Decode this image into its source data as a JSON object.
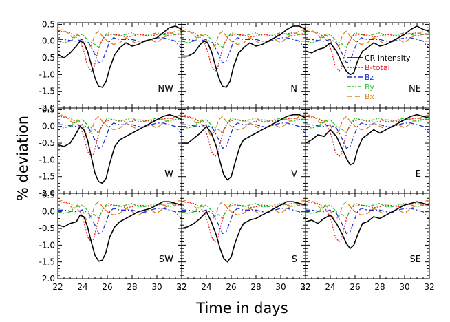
{
  "figure": {
    "xlabel": "Time in days",
    "ylabel": "% deviation"
  },
  "chart_data": {
    "type": "line",
    "layout": "3x3 grid of panels with shared axes",
    "x_ticks": [
      "22",
      "24",
      "26",
      "28",
      "30",
      "32"
    ],
    "y_ticks": [
      "0.5",
      "0.0",
      "-0.5",
      "-1.0",
      "-1.5",
      "-2.0"
    ],
    "xlim": [
      22,
      32
    ],
    "ylim": [
      -2.0,
      0.55
    ],
    "legend": {
      "placement": "right side of NE panel",
      "entries": [
        {
          "key": "cr",
          "label": "CR intensity",
          "color": "#000000",
          "dash": ""
        },
        {
          "key": "bt",
          "label": "B-total",
          "color": "#e8191b",
          "dash": "2,2"
        },
        {
          "key": "bz",
          "label": "Bz",
          "color": "#1a2fd6",
          "dash": "7,3,2,3"
        },
        {
          "key": "by",
          "label": "By",
          "color": "#25c425",
          "dash": "5,2,2,2,2,2"
        },
        {
          "key": "bx",
          "label": "Bx",
          "color": "#e07b15",
          "dash": "7,4"
        }
      ]
    },
    "shared_series": {
      "bt": {
        "x": [
          22,
          22.5,
          23,
          23.4,
          23.8,
          24.1,
          24.4,
          24.7,
          24.9,
          25.1,
          25.4,
          25.8,
          26.3,
          27,
          27.5,
          28,
          28.5,
          29,
          29.5,
          30,
          30.5,
          31,
          31.5,
          32
        ],
        "y": [
          0.3,
          0.28,
          0.25,
          0.15,
          0.0,
          -0.3,
          -0.75,
          -0.9,
          -0.82,
          -0.5,
          -0.1,
          0.15,
          0.2,
          0.18,
          0.12,
          0.15,
          0.2,
          0.18,
          0.15,
          0.2,
          0.22,
          0.25,
          0.2,
          0.2
        ]
      },
      "bz": {
        "x": [
          22,
          22.5,
          23,
          23.5,
          24,
          24.5,
          25,
          25.3,
          25.6,
          25.9,
          26.2,
          26.5,
          27,
          27.5,
          28,
          28.5,
          29,
          29.5,
          30,
          30.5,
          31,
          31.5,
          31.8,
          32
        ],
        "y": [
          0.05,
          0.05,
          0.02,
          0.0,
          0.05,
          -0.05,
          -0.4,
          -0.65,
          -0.6,
          -0.3,
          0.0,
          0.1,
          0.05,
          0.05,
          0.05,
          0.0,
          -0.02,
          0.05,
          0.1,
          0.1,
          0.05,
          0.0,
          -0.15,
          -0.2
        ]
      },
      "by": {
        "x": [
          22,
          22.5,
          23,
          23.5,
          24,
          24.5,
          25,
          25.3,
          25.6,
          26,
          26.5,
          27,
          27.5,
          28,
          28.5,
          29,
          29.5,
          30,
          30.5,
          31,
          31.5,
          32
        ],
        "y": [
          0.0,
          -0.05,
          0.0,
          0.15,
          0.2,
          0.0,
          -0.1,
          -0.2,
          0.05,
          0.25,
          0.2,
          0.15,
          0.2,
          0.25,
          0.15,
          0.15,
          0.2,
          0.25,
          0.2,
          0.15,
          0.2,
          0.25
        ]
      },
      "bx": {
        "x": [
          22,
          22.4,
          22.8,
          23.2,
          23.6,
          24,
          24.3,
          24.7,
          25,
          25.3,
          25.6,
          26,
          26.5,
          27,
          27.5,
          28,
          28.5,
          29,
          29.5,
          30,
          30.5,
          31,
          31.5,
          32
        ],
        "y": [
          0.3,
          0.35,
          0.25,
          0.1,
          0.2,
          0.05,
          -0.25,
          -0.15,
          0.2,
          0.3,
          0.15,
          0.0,
          -0.1,
          -0.05,
          0.1,
          0.0,
          -0.1,
          0.0,
          0.05,
          -0.05,
          0.1,
          0.2,
          0.3,
          0.35
        ]
      }
    },
    "panels": [
      {
        "name": "NW",
        "cr": {
          "x": [
            22,
            22.5,
            23,
            23.5,
            23.8,
            24.1,
            24.4,
            24.7,
            25,
            25.3,
            25.6,
            25.9,
            26.2,
            26.6,
            27,
            27.5,
            28,
            28.5,
            29,
            29.5,
            30,
            30.5,
            31,
            31.5,
            32
          ],
          "y": [
            -0.4,
            -0.5,
            -0.35,
            -0.15,
            0.0,
            -0.05,
            -0.3,
            -0.7,
            -1.1,
            -1.35,
            -1.38,
            -1.2,
            -0.8,
            -0.4,
            -0.2,
            -0.05,
            -0.15,
            -0.1,
            0.0,
            0.05,
            0.1,
            0.25,
            0.4,
            0.45,
            0.35
          ]
        }
      },
      {
        "name": "N",
        "cr": {
          "x": [
            22,
            22.5,
            23,
            23.5,
            23.8,
            24.1,
            24.4,
            24.7,
            25,
            25.3,
            25.6,
            25.9,
            26.2,
            26.6,
            27,
            27.5,
            28,
            28.5,
            29,
            29.5,
            30,
            30.5,
            31,
            31.5,
            32
          ],
          "y": [
            -0.45,
            -0.45,
            -0.35,
            -0.1,
            0.0,
            -0.05,
            -0.3,
            -0.7,
            -1.1,
            -1.35,
            -1.38,
            -1.2,
            -0.75,
            -0.35,
            -0.2,
            -0.05,
            -0.15,
            -0.1,
            0.0,
            0.1,
            0.2,
            0.35,
            0.45,
            0.45,
            0.35
          ]
        }
      },
      {
        "name": "NE",
        "cr": {
          "x": [
            22,
            22.5,
            23,
            23.5,
            24,
            24.5,
            25,
            25.3,
            25.6,
            25.9,
            26.2,
            26.6,
            27,
            27.5,
            28,
            28.5,
            29,
            29.5,
            30,
            30.5,
            31,
            31.5,
            32
          ],
          "y": [
            -0.3,
            -0.35,
            -0.25,
            -0.2,
            -0.05,
            -0.3,
            -0.7,
            -0.9,
            -1.0,
            -0.95,
            -0.6,
            -0.3,
            -0.2,
            -0.05,
            -0.15,
            -0.1,
            0.0,
            0.1,
            0.2,
            0.35,
            0.45,
            0.35,
            0.3
          ]
        }
      },
      {
        "name": "W",
        "cr": {
          "x": [
            22,
            22.5,
            23,
            23.5,
            23.8,
            24.1,
            24.4,
            24.7,
            25,
            25.3,
            25.6,
            25.9,
            26.2,
            26.6,
            27,
            27.5,
            28,
            28.5,
            29,
            29.5,
            30,
            30.5,
            31,
            31.5,
            32
          ],
          "y": [
            -0.55,
            -0.6,
            -0.5,
            -0.2,
            0.0,
            -0.1,
            -0.4,
            -0.9,
            -1.4,
            -1.65,
            -1.7,
            -1.55,
            -1.1,
            -0.6,
            -0.4,
            -0.3,
            -0.2,
            -0.1,
            0.0,
            0.1,
            0.2,
            0.3,
            0.35,
            0.3,
            0.2
          ]
        }
      },
      {
        "name": "V",
        "cr": {
          "x": [
            22,
            22.5,
            23,
            23.5,
            24,
            24.4,
            24.8,
            25.1,
            25.4,
            25.7,
            26,
            26.3,
            26.7,
            27,
            27.5,
            28,
            28.5,
            29,
            29.5,
            30,
            30.5,
            31,
            31.5,
            32
          ],
          "y": [
            -0.5,
            -0.5,
            -0.35,
            -0.2,
            0.0,
            -0.2,
            -0.6,
            -1.05,
            -1.45,
            -1.6,
            -1.5,
            -1.1,
            -0.6,
            -0.4,
            -0.3,
            -0.2,
            -0.1,
            0.0,
            0.1,
            0.2,
            0.3,
            0.35,
            0.35,
            0.25
          ]
        }
      },
      {
        "name": "E",
        "cr": {
          "x": [
            22,
            22.5,
            23,
            23.5,
            24,
            24.5,
            25,
            25.3,
            25.6,
            25.9,
            26.2,
            26.6,
            27,
            27.5,
            28,
            28.5,
            29,
            29.5,
            30,
            30.5,
            31,
            31.5,
            32
          ],
          "y": [
            -0.5,
            -0.4,
            -0.25,
            -0.3,
            -0.1,
            -0.3,
            -0.7,
            -0.95,
            -1.15,
            -1.1,
            -0.7,
            -0.35,
            -0.25,
            -0.1,
            -0.2,
            -0.1,
            0.0,
            0.1,
            0.2,
            0.3,
            0.35,
            0.3,
            0.25
          ]
        }
      },
      {
        "name": "SW",
        "cr": {
          "x": [
            22,
            22.5,
            23,
            23.5,
            23.8,
            24.1,
            24.4,
            24.7,
            25,
            25.3,
            25.6,
            25.9,
            26.2,
            26.6,
            27,
            27.5,
            28,
            28.5,
            29,
            29.5,
            30,
            30.5,
            31,
            31.5,
            32
          ],
          "y": [
            -0.4,
            -0.45,
            -0.35,
            -0.3,
            -0.1,
            -0.15,
            -0.45,
            -0.9,
            -1.3,
            -1.48,
            -1.45,
            -1.2,
            -0.75,
            -0.45,
            -0.3,
            -0.2,
            -0.1,
            0.0,
            0.05,
            0.1,
            0.2,
            0.3,
            0.3,
            0.25,
            0.2
          ]
        }
      },
      {
        "name": "S",
        "cr": {
          "x": [
            22,
            22.5,
            23,
            23.5,
            24,
            24.4,
            24.8,
            25.1,
            25.4,
            25.7,
            26,
            26.3,
            26.7,
            27,
            27.5,
            28,
            28.5,
            29,
            29.5,
            30,
            30.5,
            31,
            31.5,
            32
          ],
          "y": [
            -0.5,
            -0.45,
            -0.35,
            -0.2,
            0.0,
            -0.3,
            -0.7,
            -1.1,
            -1.4,
            -1.5,
            -1.35,
            -0.95,
            -0.55,
            -0.35,
            -0.25,
            -0.2,
            -0.1,
            0.0,
            0.1,
            0.2,
            0.3,
            0.3,
            0.25,
            0.2
          ]
        }
      },
      {
        "name": "SE",
        "cr": {
          "x": [
            22,
            22.5,
            23,
            23.5,
            24,
            24.5,
            25,
            25.3,
            25.6,
            25.9,
            26.2,
            26.6,
            27,
            27.5,
            28,
            28.5,
            29,
            29.5,
            30,
            30.5,
            31,
            31.5,
            32
          ],
          "y": [
            -0.3,
            -0.25,
            -0.35,
            -0.2,
            -0.1,
            -0.35,
            -0.7,
            -0.95,
            -1.1,
            -1.0,
            -0.7,
            -0.35,
            -0.3,
            -0.15,
            -0.2,
            -0.1,
            0.0,
            0.1,
            0.2,
            0.25,
            0.3,
            0.25,
            0.2
          ]
        }
      }
    ]
  }
}
